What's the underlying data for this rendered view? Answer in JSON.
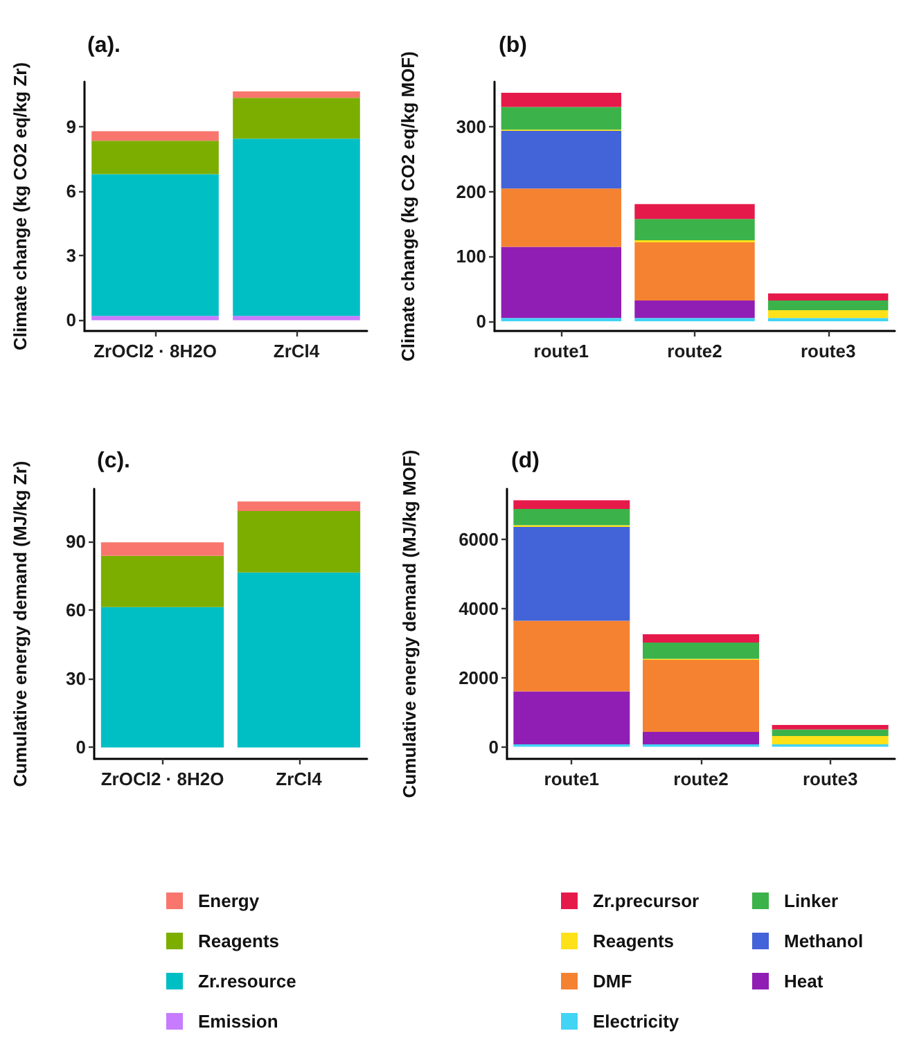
{
  "chart_data": [
    {
      "type": "bar",
      "stacked": true,
      "title": "(a).",
      "ylabel": "Climate change (kg CO2 eq/kg Zr)",
      "categories": [
        "ZrOCl2 · 8H2O",
        "ZrCl4"
      ],
      "ylim": [
        -0.5,
        11.1
      ],
      "yticks": [
        0,
        3,
        6,
        9
      ],
      "grid": false,
      "legend": false,
      "series": [
        {
          "color": "#c77cff",
          "values": [
            0.2,
            0.2
          ]
        },
        {
          "color": "#00bfc4",
          "values": [
            6.6,
            8.25
          ]
        },
        {
          "color": "#7cae00",
          "values": [
            1.55,
            1.9
          ]
        },
        {
          "color": "#f8766d",
          "values": [
            0.45,
            0.3
          ]
        }
      ]
    },
    {
      "type": "bar",
      "stacked": true,
      "title": "(b)",
      "ylabel": "Climate change (kg CO2 eq/kg MOF)",
      "categories": [
        "route1",
        "route2",
        "route3"
      ],
      "ylim": [
        -15,
        370
      ],
      "yticks": [
        0,
        100,
        200,
        300
      ],
      "grid": false,
      "legend": false,
      "series": [
        {
          "color": "#42d4f4",
          "values": [
            5,
            5,
            5
          ]
        },
        {
          "color": "#911eb4",
          "values": [
            110,
            27,
            0
          ]
        },
        {
          "color": "#f58231",
          "values": [
            90,
            90,
            0
          ]
        },
        {
          "color": "#4363d8",
          "values": [
            89,
            0,
            0
          ]
        },
        {
          "color": "#ffe119",
          "values": [
            2,
            3,
            12
          ]
        },
        {
          "color": "#3cb24a",
          "values": [
            35,
            33,
            15
          ]
        },
        {
          "color": "#e6194b",
          "values": [
            22,
            23,
            11
          ]
        }
      ]
    },
    {
      "type": "bar",
      "stacked": true,
      "title": "(c).",
      "ylabel": "Cumulative energy demand (MJ/kg Zr)",
      "categories": [
        "ZrOCl2 · 8H2O",
        "ZrCl4"
      ],
      "ylim": [
        -5,
        113
      ],
      "yticks": [
        0,
        30,
        60,
        90
      ],
      "grid": false,
      "legend": "bottom",
      "series": [
        {
          "name": "Emission",
          "color": "#c77cff",
          "values": [
            0,
            0
          ]
        },
        {
          "name": "Zr.resource",
          "color": "#00bfc4",
          "values": [
            61.3,
            76.5
          ]
        },
        {
          "name": "Reagents",
          "color": "#7cae00",
          "values": [
            22.4,
            26.8
          ]
        },
        {
          "name": "Energy",
          "color": "#f8766d",
          "values": [
            5.9,
            4.2
          ]
        }
      ]
    },
    {
      "type": "bar",
      "stacked": true,
      "title": "(d)",
      "ylabel": "Cumulative energy demand (MJ/kg MOF)",
      "categories": [
        "route1",
        "route2",
        "route3"
      ],
      "ylim": [
        -350,
        7450
      ],
      "yticks": [
        0,
        2000,
        4000,
        6000
      ],
      "grid": false,
      "legend": "bottom",
      "series": [
        {
          "name": "Electricity",
          "color": "#42d4f4",
          "values": [
            70,
            70,
            70
          ]
        },
        {
          "name": "Heat",
          "color": "#911eb4",
          "values": [
            1530,
            360,
            0
          ]
        },
        {
          "name": "DMF",
          "color": "#f58231",
          "values": [
            2040,
            2080,
            0
          ]
        },
        {
          "name": "Methanol",
          "color": "#4363d8",
          "values": [
            2710,
            0,
            0
          ]
        },
        {
          "name": "Reagents",
          "color": "#ffe119",
          "values": [
            50,
            30,
            240
          ]
        },
        {
          "name": "Linker",
          "color": "#3cb24a",
          "values": [
            470,
            470,
            190
          ]
        },
        {
          "name": "Zr.precursor",
          "color": "#e6194b",
          "values": [
            250,
            240,
            130
          ]
        }
      ]
    }
  ]
}
